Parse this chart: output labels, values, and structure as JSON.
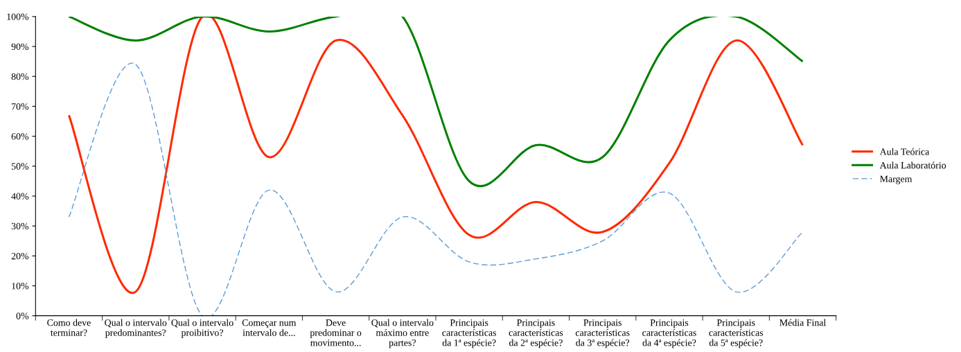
{
  "chart_data": {
    "type": "line",
    "categories": [
      "Como deve\nterminar?",
      "Qual o intervalo\npredominantes?",
      "Qual o intervalo\nproibitivo?",
      "Começar num\nintervalo de...",
      "Deve\npredominar o\nmovimento...",
      "Qual o intervalo\nmáximo entre\npartes?",
      "Principais\ncaracterísticas\nda 1ª espécie?",
      "Principais\ncaracterísticas\nda 2ª espécie?",
      "Principais\ncaracterísticas\nda 3ª espécie?",
      "Principais\ncaracterísticas\nda 4ª espécie?",
      "Principais\ncaracterísticas\nda 5ª espécie?",
      "Média Final"
    ],
    "series": [
      {
        "name": "Aula Teórica",
        "color": "#ff2a00",
        "line_style": "solid",
        "values": [
          67,
          8,
          100,
          53,
          92,
          67,
          27,
          38,
          28,
          51,
          92,
          57
        ]
      },
      {
        "name": "Aula Laboratório",
        "color": "#008000",
        "line_style": "solid",
        "values": [
          100,
          92,
          100,
          95,
          100,
          100,
          45,
          57,
          53,
          92,
          100,
          85
        ]
      },
      {
        "name": "Margem",
        "color": "#5b9bd5",
        "line_style": "dashed",
        "values": [
          33,
          84,
          0,
          42,
          8,
          33,
          18,
          19,
          25,
          41,
          8,
          28
        ]
      }
    ],
    "ylim": [
      0,
      100
    ],
    "yticks": [
      {
        "value": 0,
        "label": "0%"
      },
      {
        "value": 10,
        "label": "10%"
      },
      {
        "value": 20,
        "label": "20%"
      },
      {
        "value": 30,
        "label": "30%"
      },
      {
        "value": 40,
        "label": "40%"
      },
      {
        "value": 50,
        "label": "50%"
      },
      {
        "value": 60,
        "label": "60%"
      },
      {
        "value": 70,
        "label": "70%"
      },
      {
        "value": 80,
        "label": "80%"
      },
      {
        "value": 90,
        "label": "90%"
      },
      {
        "value": 100,
        "label": "100%"
      }
    ],
    "grid": false,
    "legend": "right",
    "marker": "none"
  }
}
